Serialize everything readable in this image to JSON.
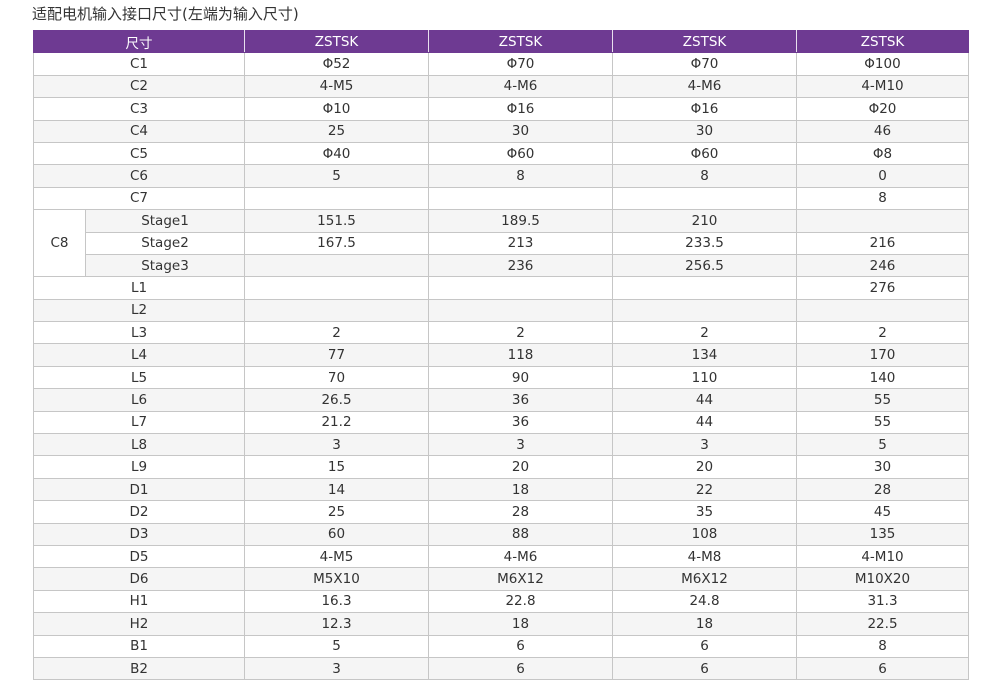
{
  "title": "适配电机输入接口尺寸(左端为输入尺寸)",
  "table": {
    "header": [
      "尺寸",
      "ZSTSK",
      "ZSTSK",
      "ZSTSK",
      "ZSTSK"
    ],
    "group_label": "C8",
    "rows_before_group": [
      {
        "label": "C1",
        "values": [
          "Φ52",
          "Φ70",
          "Φ70",
          "Φ100"
        ]
      },
      {
        "label": "C2",
        "values": [
          "4-M5",
          "4-M6",
          "4-M6",
          "4-M10"
        ]
      },
      {
        "label": "C3",
        "values": [
          "Φ10",
          "Φ16",
          "Φ16",
          "Φ20"
        ]
      },
      {
        "label": "C4",
        "values": [
          "25",
          "30",
          "30",
          "46"
        ]
      },
      {
        "label": "C5",
        "values": [
          "Φ40",
          "Φ60",
          "Φ60",
          "Φ8"
        ]
      },
      {
        "label": "C6",
        "values": [
          "5",
          "8",
          "8",
          "0"
        ]
      },
      {
        "label": "C7",
        "values": [
          "",
          "",
          "",
          "8"
        ]
      }
    ],
    "group_rows": [
      {
        "label": "Stage1",
        "values": [
          "151.5",
          "189.5",
          "210",
          ""
        ]
      },
      {
        "label": "Stage2",
        "values": [
          "167.5",
          "213",
          "233.5",
          "216"
        ]
      },
      {
        "label": "Stage3",
        "values": [
          "",
          "236",
          "256.5",
          "246"
        ]
      }
    ],
    "rows_after_group": [
      {
        "label": "L1",
        "values": [
          "",
          "",
          "",
          "276"
        ]
      },
      {
        "label": "L2",
        "values": [
          "",
          "",
          "",
          ""
        ]
      },
      {
        "label": "L3",
        "values": [
          "2",
          "2",
          "2",
          "2"
        ]
      },
      {
        "label": "L4",
        "values": [
          "77",
          "118",
          "134",
          "170"
        ]
      },
      {
        "label": "L5",
        "values": [
          "70",
          "90",
          "110",
          "140"
        ]
      },
      {
        "label": "L6",
        "values": [
          "26.5",
          "36",
          "44",
          "55"
        ]
      },
      {
        "label": "L7",
        "values": [
          "21.2",
          "36",
          "44",
          "55"
        ]
      },
      {
        "label": "L8",
        "values": [
          "3",
          "3",
          "3",
          "5"
        ]
      },
      {
        "label": "L9",
        "values": [
          "15",
          "20",
          "20",
          "30"
        ]
      },
      {
        "label": "D1",
        "values": [
          "14",
          "18",
          "22",
          "28"
        ]
      },
      {
        "label": "D2",
        "values": [
          "25",
          "28",
          "35",
          "45"
        ]
      },
      {
        "label": "D3",
        "values": [
          "60",
          "88",
          "108",
          "135"
        ]
      },
      {
        "label": "D5",
        "values": [
          "4-M5",
          "4-M6",
          "4-M8",
          "4-M10"
        ]
      },
      {
        "label": "D6",
        "values": [
          "M5X10",
          "M6X12",
          "M6X12",
          "M10X20"
        ]
      },
      {
        "label": "H1",
        "values": [
          "16.3",
          "22.8",
          "24.8",
          "31.3"
        ]
      },
      {
        "label": "H2",
        "values": [
          "12.3",
          "18",
          "18",
          "22.5"
        ]
      },
      {
        "label": "B1",
        "values": [
          "5",
          "6",
          "6",
          "8"
        ]
      },
      {
        "label": "B2",
        "values": [
          "3",
          "6",
          "6",
          "6"
        ]
      }
    ]
  }
}
